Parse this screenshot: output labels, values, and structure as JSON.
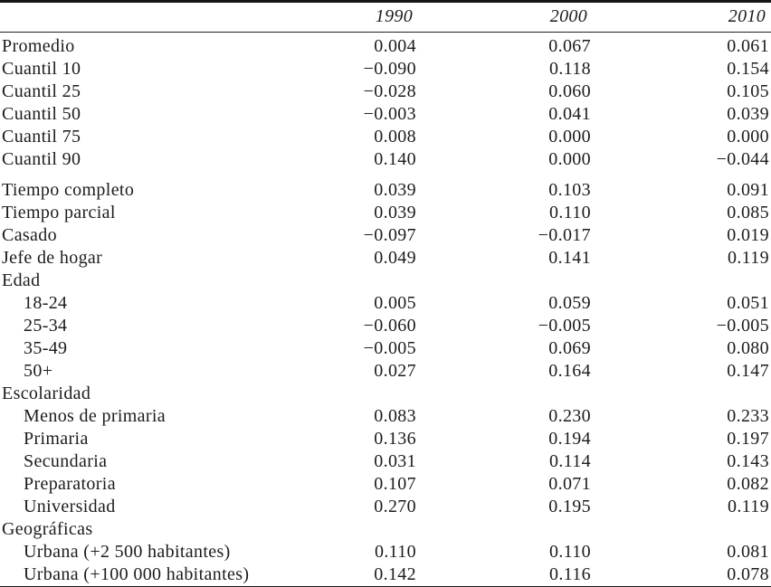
{
  "page": {
    "background": "#ffffff",
    "text_color": "#1c1c1c",
    "rule_color": "#161616"
  },
  "table": {
    "column_headers": [
      "1990",
      "2000",
      "2010"
    ],
    "rows": [
      {
        "label": "Promedio",
        "type": "data",
        "indent": false,
        "gap_before": false,
        "values": [
          "0.004",
          "0.067",
          "0.061"
        ]
      },
      {
        "label": "Cuantil 10",
        "type": "data",
        "indent": false,
        "gap_before": false,
        "values": [
          "−0.090",
          "0.118",
          "0.154"
        ]
      },
      {
        "label": "Cuantil 25",
        "type": "data",
        "indent": false,
        "gap_before": false,
        "values": [
          "−0.028",
          "0.060",
          "0.105"
        ]
      },
      {
        "label": "Cuantil 50",
        "type": "data",
        "indent": false,
        "gap_before": false,
        "values": [
          "−0.003",
          "0.041",
          "0.039"
        ]
      },
      {
        "label": "Cuantil 75",
        "type": "data",
        "indent": false,
        "gap_before": false,
        "values": [
          "0.008",
          "0.000",
          "0.000"
        ]
      },
      {
        "label": "Cuantil 90",
        "type": "data",
        "indent": false,
        "gap_before": false,
        "values": [
          "0.140",
          "0.000",
          "−0.044"
        ]
      },
      {
        "label": "Tiempo completo",
        "type": "data",
        "indent": false,
        "gap_before": true,
        "values": [
          "0.039",
          "0.103",
          "0.091"
        ]
      },
      {
        "label": "Tiempo parcial",
        "type": "data",
        "indent": false,
        "gap_before": false,
        "values": [
          "0.039",
          "0.110",
          "0.085"
        ]
      },
      {
        "label": "Casado",
        "type": "data",
        "indent": false,
        "gap_before": false,
        "values": [
          "−0.097",
          "−0.017",
          "0.019"
        ]
      },
      {
        "label": "Jefe de hogar",
        "type": "data",
        "indent": false,
        "gap_before": false,
        "values": [
          "0.049",
          "0.141",
          "0.119"
        ]
      },
      {
        "label": "Edad",
        "type": "section",
        "indent": false,
        "gap_before": false,
        "values": [
          "",
          "",
          ""
        ]
      },
      {
        "label": "18-24",
        "type": "data",
        "indent": true,
        "gap_before": false,
        "values": [
          "0.005",
          "0.059",
          "0.051"
        ]
      },
      {
        "label": "25-34",
        "type": "data",
        "indent": true,
        "gap_before": false,
        "values": [
          "−0.060",
          "−0.005",
          "−0.005"
        ]
      },
      {
        "label": "35-49",
        "type": "data",
        "indent": true,
        "gap_before": false,
        "values": [
          "−0.005",
          "0.069",
          "0.080"
        ]
      },
      {
        "label": "50+",
        "type": "data",
        "indent": true,
        "gap_before": false,
        "values": [
          "0.027",
          "0.164",
          "0.147"
        ]
      },
      {
        "label": "Escolaridad",
        "type": "section",
        "indent": false,
        "gap_before": false,
        "values": [
          "",
          "",
          ""
        ]
      },
      {
        "label": "Menos de primaria",
        "type": "data",
        "indent": true,
        "gap_before": false,
        "values": [
          "0.083",
          "0.230",
          "0.233"
        ]
      },
      {
        "label": "Primaria",
        "type": "data",
        "indent": true,
        "gap_before": false,
        "values": [
          "0.136",
          "0.194",
          "0.197"
        ]
      },
      {
        "label": "Secundaria",
        "type": "data",
        "indent": true,
        "gap_before": false,
        "values": [
          "0.031",
          "0.114",
          "0.143"
        ]
      },
      {
        "label": "Preparatoria",
        "type": "data",
        "indent": true,
        "gap_before": false,
        "values": [
          "0.107",
          "0.071",
          "0.082"
        ]
      },
      {
        "label": "Universidad",
        "type": "data",
        "indent": true,
        "gap_before": false,
        "values": [
          "0.270",
          "0.195",
          "0.119"
        ]
      },
      {
        "label": "Geográficas",
        "type": "section",
        "indent": false,
        "gap_before": false,
        "values": [
          "",
          "",
          ""
        ]
      },
      {
        "label": "Urbana (+2 500 habitantes)",
        "type": "data",
        "indent": true,
        "gap_before": false,
        "values": [
          "0.110",
          "0.110",
          "0.081"
        ]
      },
      {
        "label": "Urbana (+100 000 habitantes)",
        "type": "data",
        "indent": true,
        "gap_before": false,
        "values": [
          "0.142",
          "0.116",
          "0.078"
        ]
      }
    ]
  }
}
